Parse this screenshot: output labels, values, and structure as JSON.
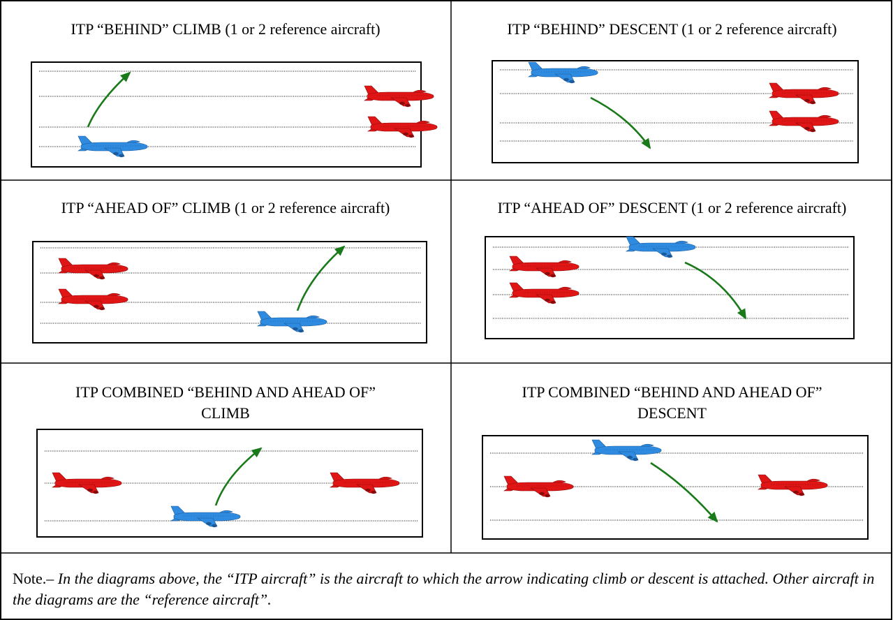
{
  "cells": [
    {
      "id": "behind-climb",
      "title_lines": [
        "ITP “BEHIND” CLIMB (1 or 2 reference aircraft)"
      ]
    },
    {
      "id": "behind-descent",
      "title_lines": [
        "ITP “BEHIND” DESCENT (1 or 2 reference aircraft)"
      ]
    },
    {
      "id": "ahead-climb",
      "title_lines": [
        "ITP “AHEAD OF” CLIMB (1 or 2 reference aircraft)"
      ]
    },
    {
      "id": "ahead-descent",
      "title_lines": [
        "ITP “AHEAD OF” DESCENT (1 or 2 reference aircraft)"
      ]
    },
    {
      "id": "combined-climb",
      "title_lines": [
        "ITP COMBINED “BEHIND AND AHEAD OF”",
        "CLIMB"
      ]
    },
    {
      "id": "combined-descent",
      "title_lines": [
        "ITP COMBINED “BEHIND AND AHEAD OF”",
        "DESCENT"
      ]
    }
  ],
  "note": {
    "prefix": "Note.– ",
    "text": "In the diagrams above, the “ITP aircraft” is the aircraft to which the arrow indicating climb or descent is attached. Other aircraft in the diagrams are the “reference aircraft”."
  },
  "colors": {
    "itp_aircraft": "#2f8be0",
    "reference_aircraft": "#e01515",
    "arrow": "#1a7a1a",
    "flight_level_line": "#000000"
  }
}
